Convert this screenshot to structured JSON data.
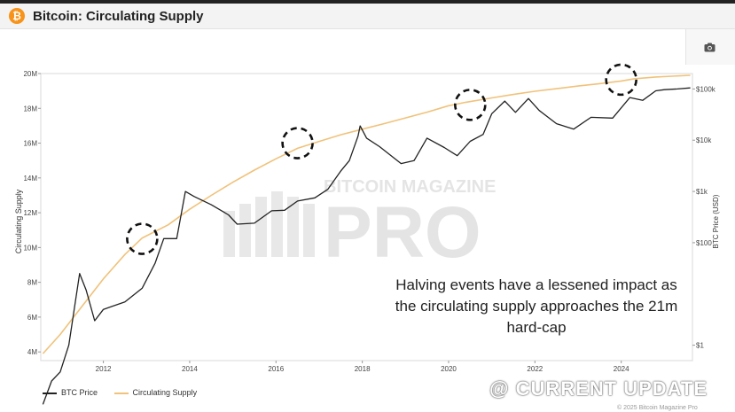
{
  "header": {
    "title": "Bitcoin: Circulating Supply",
    "logo": "₿"
  },
  "toolbar": {
    "camera_icon": "camera-icon"
  },
  "chart_data": {
    "type": "line",
    "title": "Bitcoin: Circulating Supply",
    "ylabel": "Circulating Supply",
    "y2label": "BTC Price (USD)",
    "xlim": [
      2010.55,
      2025.65
    ],
    "ylim": [
      3500000,
      20000000
    ],
    "y2_log_range": [
      0.5,
      200000
    ],
    "x_ticks": [
      "2012",
      "2014",
      "2016",
      "2018",
      "2020",
      "2022",
      "2024"
    ],
    "y_ticks": [
      {
        "v": 4000000,
        "label": "4M"
      },
      {
        "v": 6000000,
        "label": "6M"
      },
      {
        "v": 8000000,
        "label": "8M"
      },
      {
        "v": 10000000,
        "label": "10M"
      },
      {
        "v": 12000000,
        "label": "12M"
      },
      {
        "v": 14000000,
        "label": "14M"
      },
      {
        "v": 16000000,
        "label": "16M"
      },
      {
        "v": 18000000,
        "label": "18M"
      },
      {
        "v": 20000000,
        "label": "20M"
      }
    ],
    "y2_ticks": [
      {
        "v": 1,
        "label": "$1"
      },
      {
        "v": 100,
        "label": "$100"
      },
      {
        "v": 1000,
        "label": "$1k"
      },
      {
        "v": 10000,
        "label": "$10k"
      },
      {
        "v": 100000,
        "label": "$100k"
      }
    ],
    "series": [
      {
        "name": "BTC Price",
        "axis": "right",
        "color": "#222222",
        "x": [
          2010.6,
          2010.8,
          2011.0,
          2011.2,
          2011.45,
          2011.6,
          2011.8,
          2012.0,
          2012.5,
          2012.9,
          2013.2,
          2013.4,
          2013.7,
          2013.9,
          2014.1,
          2014.5,
          2014.9,
          2015.1,
          2015.5,
          2015.9,
          2016.2,
          2016.5,
          2016.9,
          2017.2,
          2017.5,
          2017.7,
          2017.9,
          2017.95,
          2018.1,
          2018.4,
          2018.9,
          2019.2,
          2019.5,
          2019.9,
          2020.2,
          2020.5,
          2020.8,
          2021.0,
          2021.3,
          2021.55,
          2021.85,
          2022.1,
          2022.5,
          2022.9,
          2023.3,
          2023.8,
          2024.2,
          2024.5,
          2024.8,
          2025.0,
          2025.3,
          2025.6
        ],
        "y": [
          0.07,
          0.2,
          0.3,
          1.0,
          25,
          12,
          3,
          5,
          7,
          13,
          40,
          120,
          120,
          1000,
          800,
          550,
          350,
          230,
          240,
          420,
          430,
          650,
          750,
          1100,
          2500,
          4000,
          12000,
          19000,
          11000,
          7500,
          3500,
          4000,
          11000,
          7200,
          5000,
          9500,
          13000,
          33000,
          58000,
          35000,
          65000,
          38000,
          21000,
          16500,
          28000,
          27000,
          68000,
          60000,
          92000,
          97000,
          100000,
          105000
        ]
      },
      {
        "name": "Circulating Supply",
        "axis": "left",
        "color": "#f0c27a",
        "x": [
          2010.6,
          2011.0,
          2011.5,
          2012.0,
          2012.5,
          2012.9,
          2013.5,
          2014.0,
          2014.5,
          2015.0,
          2015.5,
          2016.0,
          2016.5,
          2017.0,
          2017.5,
          2018.0,
          2018.5,
          2019.0,
          2019.5,
          2020.0,
          2020.4,
          2021.0,
          2021.5,
          2022.0,
          2022.5,
          2023.0,
          2023.5,
          2024.0,
          2024.3,
          2024.8,
          2025.6
        ],
        "y": [
          3900000,
          5000000,
          6600000,
          8200000,
          9600000,
          10550000,
          11300000,
          12200000,
          13000000,
          13750000,
          14450000,
          15100000,
          15700000,
          16100000,
          16480000,
          16800000,
          17120000,
          17450000,
          17780000,
          18150000,
          18350000,
          18600000,
          18800000,
          18980000,
          19130000,
          19280000,
          19420000,
          19570000,
          19700000,
          19800000,
          19900000
        ]
      }
    ],
    "annotations": [
      {
        "x": 2012.9,
        "y": 10500000
      },
      {
        "x": 2016.5,
        "y": 16000000
      },
      {
        "x": 2020.5,
        "y": 18200000
      },
      {
        "x": 2024.0,
        "y": 19650000
      }
    ],
    "legend_position": "bottom-left",
    "annotation_text": "Halving events have a lessened impact as the circulating supply approaches the 21m hard-cap"
  },
  "legend": {
    "items": [
      "BTC Price",
      "Circulating Supply"
    ]
  },
  "watermark": {
    "line1": "BITCOIN MAGAZINE",
    "line2": "PRO"
  },
  "overlay": {
    "text": "@ CURRENT UPDATE"
  },
  "footer": {
    "copyright": "© 2025 Bitcoin Magazine Pro"
  }
}
